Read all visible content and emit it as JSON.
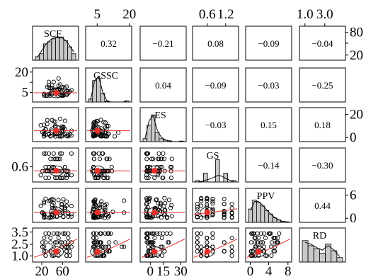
{
  "chart_data": {
    "type": "pairs",
    "variables": [
      "SCF",
      "GSSC",
      "ES",
      "GS",
      "PPV",
      "RD"
    ],
    "correlations": [
      {
        "row": 0,
        "col": 1,
        "value": "0.32"
      },
      {
        "row": 0,
        "col": 2,
        "value": "−0.21"
      },
      {
        "row": 0,
        "col": 3,
        "value": "0.08"
      },
      {
        "row": 0,
        "col": 4,
        "value": "−0.09"
      },
      {
        "row": 0,
        "col": 5,
        "value": "−0.04"
      },
      {
        "row": 1,
        "col": 2,
        "value": "0.04"
      },
      {
        "row": 1,
        "col": 3,
        "value": "−0.09"
      },
      {
        "row": 1,
        "col": 4,
        "value": "−0.03"
      },
      {
        "row": 1,
        "col": 5,
        "value": "−0.25"
      },
      {
        "row": 2,
        "col": 3,
        "value": "−0.03"
      },
      {
        "row": 2,
        "col": 4,
        "value": "0.15"
      },
      {
        "row": 2,
        "col": 5,
        "value": "0.18"
      },
      {
        "row": 3,
        "col": 4,
        "value": "−0.14"
      },
      {
        "row": 3,
        "col": 5,
        "value": "−0.30"
      },
      {
        "row": 4,
        "col": 5,
        "value": "0.44"
      }
    ],
    "ranges": [
      [
        10,
        85
      ],
      [
        0,
        25
      ],
      [
        -3,
        32
      ],
      [
        0.45,
        1.5
      ],
      [
        -0.5,
        8
      ],
      [
        0.6,
        3.8
      ]
    ],
    "histograms": [
      [
        0.12,
        0.22,
        0.55,
        0.62,
        0.72,
        0.75,
        0.78,
        0.66,
        0.45,
        0.22
      ],
      [
        0.1,
        0.72,
        0.8,
        0.3,
        0.02,
        0.0,
        0.0,
        0.0,
        0.0,
        0.04
      ],
      [
        0.1,
        0.55,
        0.9,
        0.3,
        0.1,
        0.05,
        0.03,
        0.0,
        0.0,
        0.02
      ],
      [
        0.05,
        0.0,
        0.3,
        0.0,
        0.0,
        0.75,
        0.0,
        0.3,
        0.0,
        0.05
      ],
      [
        0.45,
        0.75,
        0.66,
        0.55,
        0.4,
        0.28,
        0.15,
        0.08,
        0.03,
        0.02
      ],
      [
        0.72,
        0.55,
        0.45,
        0.3,
        0.6,
        0.38,
        0.15
      ]
    ],
    "density_curves": [
      [
        0.1,
        0.3,
        0.52,
        0.66,
        0.75,
        0.78,
        0.76,
        0.66,
        0.48,
        0.28
      ],
      [
        0.05,
        0.72,
        0.86,
        0.35,
        0.05,
        0.0,
        0.0,
        0.0,
        0.0,
        0.02
      ],
      [
        0.1,
        0.7,
        0.88,
        0.4,
        0.15,
        0.06,
        0.02,
        0.0,
        0.0,
        0.0
      ],
      [
        0.0,
        0.02,
        0.06,
        0.1,
        0.15,
        0.22,
        0.2,
        0.12,
        0.06,
        0.02
      ],
      [
        0.4,
        0.7,
        0.7,
        0.58,
        0.42,
        0.28,
        0.16,
        0.08,
        0.03,
        0.02
      ],
      [
        0.66,
        0.6,
        0.48,
        0.4,
        0.55,
        0.4,
        0.18
      ]
    ],
    "centroids": {
      "SCF": 49,
      "GSSC": 5.6,
      "ES": 7.0,
      "GS": 0.76,
      "PPV": 1.6,
      "RD": 1.45
    },
    "top_axis_ticks": {
      "1": [
        "5",
        "20"
      ],
      "3": [
        "0.6",
        "1.2"
      ],
      "5": [
        "1.0",
        "3.0"
      ]
    },
    "bottom_axis_ticks": {
      "0": [
        "20",
        "60"
      ],
      "2": [
        "0",
        "15",
        "30"
      ],
      "4": [
        "0",
        "4",
        "8"
      ]
    },
    "left_axis_ticks": {
      "1": [
        "20",
        "10",
        "5"
      ],
      "3": [
        "0.6"
      ],
      "5": [
        "3.5",
        "2.5",
        "1.0"
      ]
    },
    "right_axis_ticks": {
      "0": [
        "80",
        "40",
        "20"
      ],
      "2": [
        "20",
        "0"
      ],
      "4": [
        "6",
        "0"
      ]
    },
    "grid": false,
    "legend": "none"
  }
}
